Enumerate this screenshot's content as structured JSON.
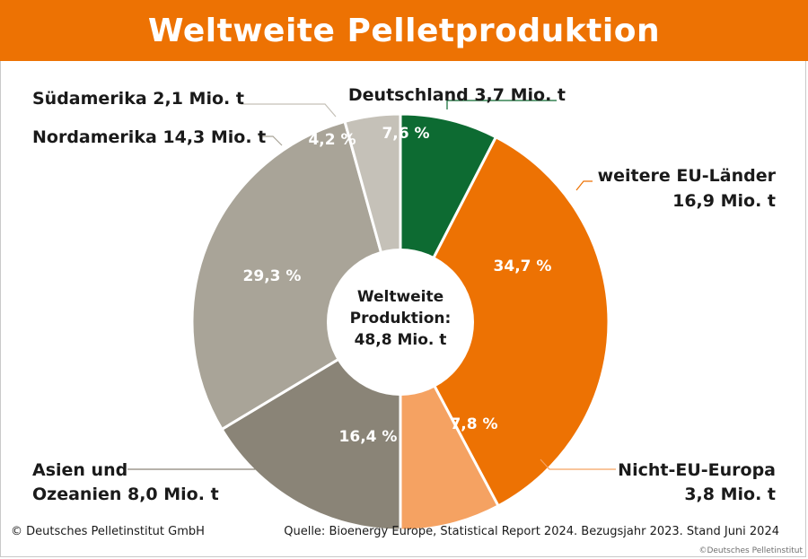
{
  "title": "Weltweite Pelletproduktion",
  "center_label": [
    "Weltweite",
    "Produktion:",
    "48,8 Mio. t"
  ],
  "footer": {
    "left": "© Deutsches Pelletinstitut GmbH",
    "right": "Quelle: Bioenergy Europe, Statistical Report 2024. Bezugsjahr 2023. Stand Juni 2024",
    "watermark": "©Deutsches Pelletinstitut"
  },
  "colors": {
    "header": "#ed7203",
    "deutschland": "#0d6b32",
    "eu": "#ed7203",
    "nicht_eu": "#f5a262",
    "asien": "#8a8477",
    "nordamerika": "#a9a498",
    "suedamerika": "#c5c1b8"
  },
  "chart_data": {
    "type": "pie",
    "style": "donut",
    "unit": "Mio. t",
    "total": 48.8,
    "slices": [
      {
        "key": "deutschland",
        "label": [
          "Deutschland 3,7 Mio. t"
        ],
        "value": 3.7,
        "percent": "7,6 %",
        "color": "#0d6b32"
      },
      {
        "key": "eu",
        "label": [
          "weitere EU-Länder",
          "16,9 Mio. t"
        ],
        "value": 16.9,
        "percent": "34,7 %",
        "color": "#ed7203"
      },
      {
        "key": "nicht_eu",
        "label": [
          "Nicht-EU-Europa",
          "3,8 Mio. t"
        ],
        "value": 3.8,
        "percent": "7,8 %",
        "color": "#f5a262"
      },
      {
        "key": "asien",
        "label": [
          "Asien und",
          "Ozeanien 8,0 Mio. t"
        ],
        "value": 8.0,
        "percent": "16,4 %",
        "color": "#8a8477"
      },
      {
        "key": "nordamerika",
        "label": [
          "Nordamerika 14,3 Mio. t"
        ],
        "value": 14.3,
        "percent": "29,3 %",
        "color": "#a9a498"
      },
      {
        "key": "suedamerika",
        "label": [
          "Südamerika 2,1 Mio. t"
        ],
        "value": 2.1,
        "percent": "4,2 %",
        "color": "#c5c1b8"
      }
    ]
  }
}
